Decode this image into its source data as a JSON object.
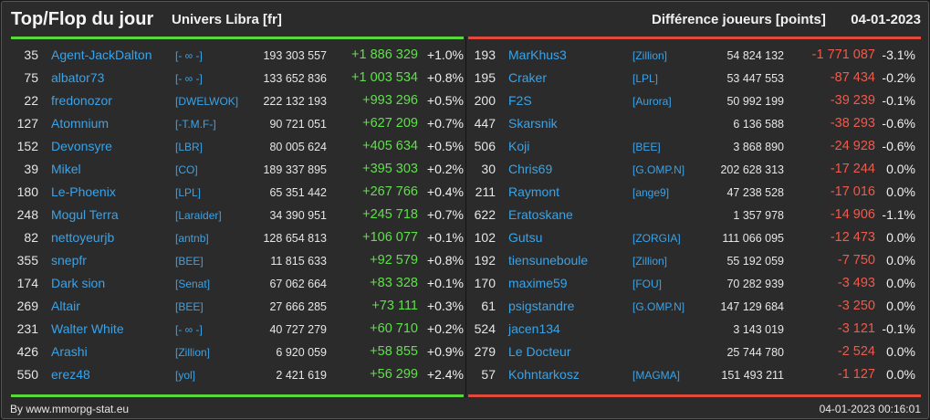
{
  "header": {
    "title": "Top/Flop du jour",
    "subtitle": "Univers Libra [fr]",
    "diff_label": "Différence joueurs [points]",
    "date": "04-01-2023"
  },
  "colors": {
    "gain": "#5fe04a",
    "loss": "#ee5a4c",
    "name_link": "#3aa3e8",
    "background": "#2b2b2b"
  },
  "top": [
    {
      "rank": "35",
      "name": "Agent-JackDalton",
      "alliance": "[- ∞ -]",
      "points": "193 303 557",
      "diff": "+1 886 329",
      "pct": "+1.0%"
    },
    {
      "rank": "75",
      "name": "albator73",
      "alliance": "[- ∞ -]",
      "points": "133 652 836",
      "diff": "+1 003 534",
      "pct": "+0.8%"
    },
    {
      "rank": "22",
      "name": "fredonozor",
      "alliance": "[DWELWOK]",
      "points": "222 132 193",
      "diff": "+993 296",
      "pct": "+0.5%"
    },
    {
      "rank": "127",
      "name": "Atomnium",
      "alliance": "[-T.M.F-]",
      "points": "90 721 051",
      "diff": "+627 209",
      "pct": "+0.7%"
    },
    {
      "rank": "152",
      "name": "Devonsyre",
      "alliance": "[LBR]",
      "points": "80 005 624",
      "diff": "+405 634",
      "pct": "+0.5%"
    },
    {
      "rank": "39",
      "name": "Mikel",
      "alliance": "[CO]",
      "points": "189 337 895",
      "diff": "+395 303",
      "pct": "+0.2%"
    },
    {
      "rank": "180",
      "name": "Le-Phoenix",
      "alliance": "[LPL]",
      "points": "65 351 442",
      "diff": "+267 766",
      "pct": "+0.4%"
    },
    {
      "rank": "248",
      "name": "Mogul Terra",
      "alliance": "[Laraider]",
      "points": "34 390 951",
      "diff": "+245 718",
      "pct": "+0.7%"
    },
    {
      "rank": "82",
      "name": "nettoyeurjb",
      "alliance": "[antnb]",
      "points": "128 654 813",
      "diff": "+106 077",
      "pct": "+0.1%"
    },
    {
      "rank": "355",
      "name": "snepfr",
      "alliance": "[BEE]",
      "points": "11 815 633",
      "diff": "+92 579",
      "pct": "+0.8%"
    },
    {
      "rank": "174",
      "name": "Dark sion",
      "alliance": "[Senat]",
      "points": "67 062 664",
      "diff": "+83 328",
      "pct": "+0.1%"
    },
    {
      "rank": "269",
      "name": "Altair",
      "alliance": "[BEE]",
      "points": "27 666 285",
      "diff": "+73 111",
      "pct": "+0.3%"
    },
    {
      "rank": "231",
      "name": "Walter White",
      "alliance": "[- ∞ -]",
      "points": "40 727 279",
      "diff": "+60 710",
      "pct": "+0.2%"
    },
    {
      "rank": "426",
      "name": "Arashi",
      "alliance": "[Zillion]",
      "points": "6 920 059",
      "diff": "+58 855",
      "pct": "+0.9%"
    },
    {
      "rank": "550",
      "name": "erez48",
      "alliance": "[yol]",
      "points": "2 421 619",
      "diff": "+56 299",
      "pct": "+2.4%"
    }
  ],
  "flop": [
    {
      "rank": "193",
      "name": "MarKhus3",
      "alliance": "[Zillion]",
      "points": "54 824 132",
      "diff": "-1 771 087",
      "pct": "-3.1%"
    },
    {
      "rank": "195",
      "name": "Craker",
      "alliance": "[LPL]",
      "points": "53 447 553",
      "diff": "-87 434",
      "pct": "-0.2%"
    },
    {
      "rank": "200",
      "name": "F2S",
      "alliance": "[Aurora]",
      "points": "50 992 199",
      "diff": "-39 239",
      "pct": "-0.1%"
    },
    {
      "rank": "447",
      "name": "Skarsnik",
      "alliance": "",
      "points": "6 136 588",
      "diff": "-38 293",
      "pct": "-0.6%"
    },
    {
      "rank": "506",
      "name": "Koji",
      "alliance": "[BEE]",
      "points": "3 868 890",
      "diff": "-24 928",
      "pct": "-0.6%"
    },
    {
      "rank": "30",
      "name": "Chris69",
      "alliance": "[G.OMP.N]",
      "points": "202 628 313",
      "diff": "-17 244",
      "pct": "0.0%"
    },
    {
      "rank": "211",
      "name": "Raymont",
      "alliance": "[ange9]",
      "points": "47 238 528",
      "diff": "-17 016",
      "pct": "0.0%"
    },
    {
      "rank": "622",
      "name": "Eratoskane",
      "alliance": "",
      "points": "1 357 978",
      "diff": "-14 906",
      "pct": "-1.1%"
    },
    {
      "rank": "102",
      "name": "Gutsu",
      "alliance": "[ZORGIA]",
      "points": "111 066 095",
      "diff": "-12 473",
      "pct": "0.0%"
    },
    {
      "rank": "192",
      "name": "tiensuneboule",
      "alliance": "[Zillion]",
      "points": "55 192 059",
      "diff": "-7 750",
      "pct": "0.0%"
    },
    {
      "rank": "170",
      "name": "maxime59",
      "alliance": "[FOU]",
      "points": "70 282 939",
      "diff": "-3 493",
      "pct": "0.0%"
    },
    {
      "rank": "61",
      "name": "psigstandre",
      "alliance": "[G.OMP.N]",
      "points": "147 129 684",
      "diff": "-3 250",
      "pct": "0.0%"
    },
    {
      "rank": "524",
      "name": "jacen134",
      "alliance": "",
      "points": "3 143 019",
      "diff": "-3 121",
      "pct": "-0.1%"
    },
    {
      "rank": "279",
      "name": "Le Docteur",
      "alliance": "",
      "points": "25 744 780",
      "diff": "-2 524",
      "pct": "0.0%"
    },
    {
      "rank": "57",
      "name": "Kohntarkosz",
      "alliance": "[MAGMA]",
      "points": "151 493 211",
      "diff": "-1 127",
      "pct": "0.0%"
    }
  ],
  "footer": {
    "credit": "By www.mmorpg-stat.eu",
    "timestamp": "04-01-2023 00:16:01"
  }
}
